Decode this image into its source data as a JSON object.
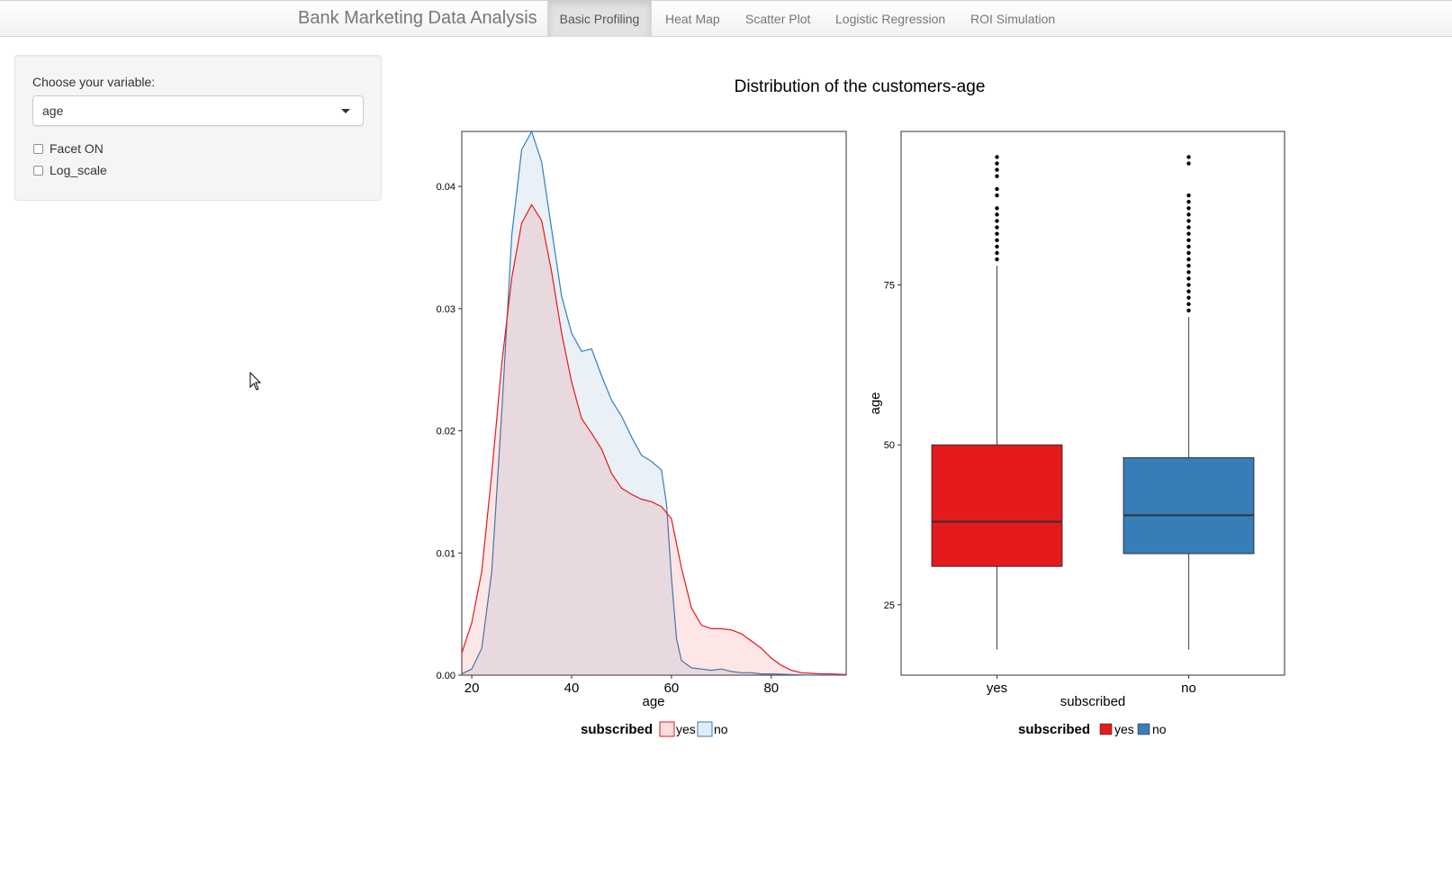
{
  "navbar": {
    "brand": "Bank Marketing Data Analysis",
    "tabs": [
      {
        "label": "Basic Profiling",
        "active": true
      },
      {
        "label": "Heat Map",
        "active": false
      },
      {
        "label": "Scatter Plot",
        "active": false
      },
      {
        "label": "Logistic Regression",
        "active": false
      },
      {
        "label": "ROI Simulation",
        "active": false
      }
    ]
  },
  "sidebar": {
    "variable_label": "Choose your variable:",
    "variable_value": "age",
    "checkboxes": [
      {
        "label": "Facet ON",
        "checked": false
      },
      {
        "label": "Log_scale",
        "checked": false
      }
    ]
  },
  "plot_title": "Distribution of the customers-age",
  "colors": {
    "yes_line": "#E41A1C",
    "no_line": "#377EB8",
    "yes_fill": "#E41A1C",
    "no_fill": "#377EB8"
  },
  "chart_data": [
    {
      "type": "area",
      "subtype": "density",
      "xlabel": "age",
      "ylabel": "",
      "xlim": [
        18,
        95
      ],
      "ylim": [
        0,
        0.0445
      ],
      "x_ticks": [
        "20",
        "40",
        "60",
        "80"
      ],
      "y_ticks": [
        "0.00",
        "0.01",
        "0.02",
        "0.03",
        "0.04"
      ],
      "legend": {
        "title": "subscribed",
        "position": "bottom",
        "items": [
          "yes",
          "no"
        ]
      },
      "grid": false,
      "series": [
        {
          "name": "yes",
          "x": [
            18,
            20,
            22,
            24,
            26,
            28,
            30,
            32,
            34,
            36,
            38,
            40,
            42,
            44,
            46,
            48,
            50,
            52,
            54,
            56,
            58,
            60,
            62,
            64,
            66,
            68,
            70,
            72,
            74,
            76,
            78,
            80,
            82,
            84,
            86,
            88,
            90,
            92,
            95
          ],
          "y": [
            0.0018,
            0.0043,
            0.0085,
            0.0165,
            0.0255,
            0.0325,
            0.037,
            0.0385,
            0.0372,
            0.033,
            0.028,
            0.024,
            0.021,
            0.0198,
            0.0185,
            0.0165,
            0.0153,
            0.0148,
            0.0144,
            0.0142,
            0.0138,
            0.0128,
            0.0088,
            0.0055,
            0.0041,
            0.0038,
            0.0038,
            0.0037,
            0.0034,
            0.0028,
            0.0022,
            0.0014,
            0.0008,
            0.0004,
            0.0002,
            0.00015,
            0.0001,
            0.0001,
            5e-05
          ]
        },
        {
          "name": "no",
          "x": [
            18,
            20,
            22,
            24,
            26,
            28,
            30,
            32,
            34,
            36,
            38,
            40,
            42,
            44,
            46,
            48,
            50,
            52,
            54,
            56,
            58,
            59,
            60,
            61,
            62,
            64,
            66,
            68,
            70,
            72,
            74,
            76,
            78,
            80,
            84,
            88,
            95
          ],
          "y": [
            0.0001,
            0.0005,
            0.0022,
            0.0085,
            0.0215,
            0.036,
            0.043,
            0.0445,
            0.042,
            0.0365,
            0.031,
            0.028,
            0.0265,
            0.0267,
            0.0245,
            0.0225,
            0.0212,
            0.0195,
            0.018,
            0.0175,
            0.0168,
            0.014,
            0.008,
            0.003,
            0.0012,
            0.0006,
            0.0005,
            0.0004,
            0.0005,
            0.0003,
            0.0002,
            0.0002,
            0.0001,
            0.0001,
            5e-05,
            0.0,
            0.0
          ]
        }
      ]
    },
    {
      "type": "box",
      "xlabel": "subscribed",
      "ylabel": "age",
      "ylim": [
        14,
        99
      ],
      "y_ticks": [
        "25",
        "50",
        "75"
      ],
      "categories": [
        "yes",
        "no"
      ],
      "legend": {
        "title": "subscribed",
        "position": "bottom",
        "items": [
          "yes",
          "no"
        ]
      },
      "grid": false,
      "boxes": [
        {
          "name": "yes",
          "whisker_low": 18,
          "q1": 31,
          "median": 38,
          "q3": 50,
          "whisker_high": 78,
          "outliers": [
            79,
            80,
            81,
            82,
            83,
            84,
            85,
            86,
            87,
            89,
            90,
            92,
            93,
            94,
            95
          ]
        },
        {
          "name": "no",
          "whisker_low": 18,
          "q1": 33,
          "median": 39,
          "q3": 48,
          "whisker_high": 70,
          "outliers": [
            71,
            72,
            73,
            74,
            75,
            76,
            77,
            78,
            79,
            80,
            81,
            82,
            83,
            84,
            85,
            86,
            87,
            88,
            89,
            94,
            95
          ]
        }
      ]
    }
  ]
}
